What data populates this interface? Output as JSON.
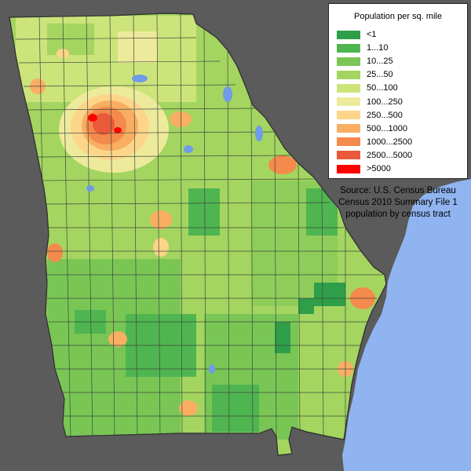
{
  "legend": {
    "title": "Population per sq. mile",
    "items": [
      {
        "label": "<1",
        "color": "#2e9e49"
      },
      {
        "label": "1...10",
        "color": "#4fb550"
      },
      {
        "label": "10...25",
        "color": "#79c655"
      },
      {
        "label": "25...50",
        "color": "#a4d560"
      },
      {
        "label": "50...100",
        "color": "#cce47a"
      },
      {
        "label": "100...250",
        "color": "#eeea9c"
      },
      {
        "label": "250...500",
        "color": "#fdd58a"
      },
      {
        "label": "500...1000",
        "color": "#f9ae62"
      },
      {
        "label": "1000...2500",
        "color": "#f48a4c"
      },
      {
        "label": "2500...5000",
        "color": "#ea5a3a"
      },
      {
        "label": ">5000",
        "color": "#ff0000"
      }
    ]
  },
  "source": {
    "line1": "Source: U.S. Census Bureau",
    "line2": "Census 2010 Summary File 1",
    "line3": "population by census tract"
  },
  "colors": {
    "background": "#5b5b5b",
    "ocean": "#8fb4f0",
    "border": "#3d4a3d",
    "water_body": "#6f9be8"
  }
}
